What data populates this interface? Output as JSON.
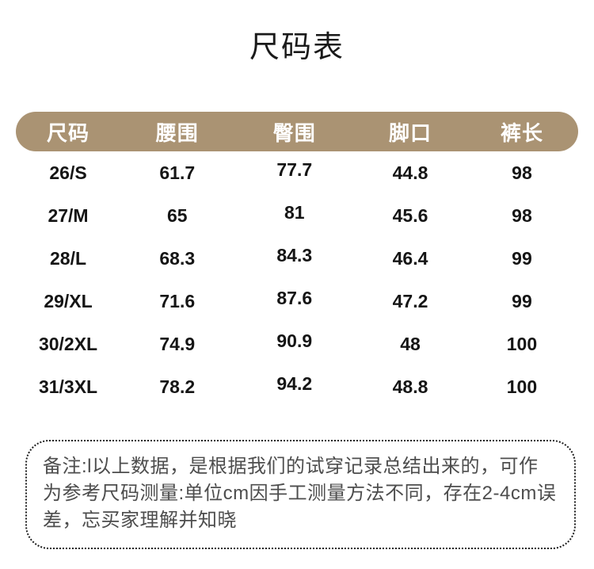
{
  "page": {
    "title": "尺码表"
  },
  "table": {
    "headers": [
      "尺码",
      "腰围",
      "臀围",
      "脚口",
      "裤长"
    ],
    "rows": [
      [
        "26/S",
        "61.7",
        "77.7",
        "44.8",
        "98"
      ],
      [
        "27/M",
        "65",
        "81",
        "45.6",
        "98"
      ],
      [
        "28/L",
        "68.3",
        "84.3",
        "46.4",
        "99"
      ],
      [
        "29/XL",
        "71.6",
        "87.6",
        "47.2",
        "99"
      ],
      [
        "30/2XL",
        "74.9",
        "90.9",
        "48",
        "100"
      ],
      [
        "31/3XL",
        "78.2",
        "94.2",
        "48.8",
        "100"
      ]
    ],
    "unit": "cm"
  },
  "note": {
    "text": "备注:l以上数据，是根据我们的试穿记录总结出来的，可作为参考尺码测量:单位cm因手工测量方法不同，存在2-4cm误差，忘买家理解并知晓"
  },
  "colors": {
    "header_bg": "#aa9373",
    "header_text": "#ffffff",
    "body_text": "#151515",
    "note_text": "#4d4d4d",
    "note_border": "#1f1f1f",
    "background": "#ffffff"
  }
}
